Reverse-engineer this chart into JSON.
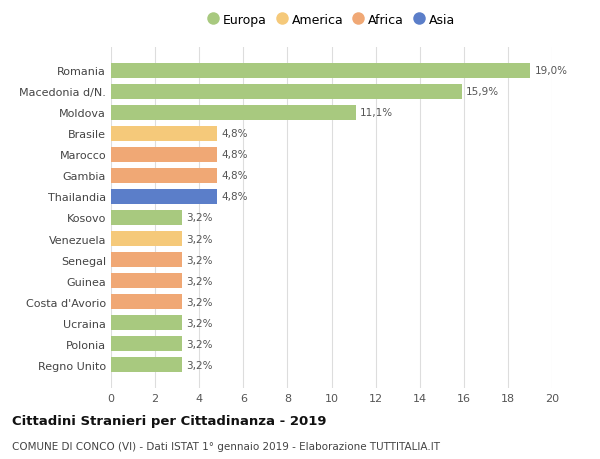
{
  "categories": [
    "Regno Unito",
    "Polonia",
    "Ucraina",
    "Costa d'Avorio",
    "Guinea",
    "Senegal",
    "Venezuela",
    "Kosovo",
    "Thailandia",
    "Gambia",
    "Marocco",
    "Brasile",
    "Moldova",
    "Macedonia d/N.",
    "Romania"
  ],
  "values": [
    3.2,
    3.2,
    3.2,
    3.2,
    3.2,
    3.2,
    3.2,
    3.2,
    4.8,
    4.8,
    4.8,
    4.8,
    11.1,
    15.9,
    19.0
  ],
  "labels": [
    "3,2%",
    "3,2%",
    "3,2%",
    "3,2%",
    "3,2%",
    "3,2%",
    "3,2%",
    "3,2%",
    "4,8%",
    "4,8%",
    "4,8%",
    "4,8%",
    "11,1%",
    "15,9%",
    "19,0%"
  ],
  "colors": [
    "#a8c97f",
    "#a8c97f",
    "#a8c97f",
    "#f0a875",
    "#f0a875",
    "#f0a875",
    "#f5c97a",
    "#a8c97f",
    "#5b7ec9",
    "#f0a875",
    "#f0a875",
    "#f5c97a",
    "#a8c97f",
    "#a8c97f",
    "#a8c97f"
  ],
  "legend_labels": [
    "Europa",
    "America",
    "Africa",
    "Asia"
  ],
  "legend_colors": [
    "#a8c97f",
    "#f5c97a",
    "#f0a875",
    "#5b7ec9"
  ],
  "title": "Cittadini Stranieri per Cittadinanza - 2019",
  "subtitle": "COMUNE DI CONCO (VI) - Dati ISTAT 1° gennaio 2019 - Elaborazione TUTTITALIA.IT",
  "xlim": [
    0,
    20
  ],
  "xticks": [
    0,
    2,
    4,
    6,
    8,
    10,
    12,
    14,
    16,
    18,
    20
  ],
  "background_color": "#ffffff",
  "grid_color": "#dddddd",
  "bar_height": 0.72
}
